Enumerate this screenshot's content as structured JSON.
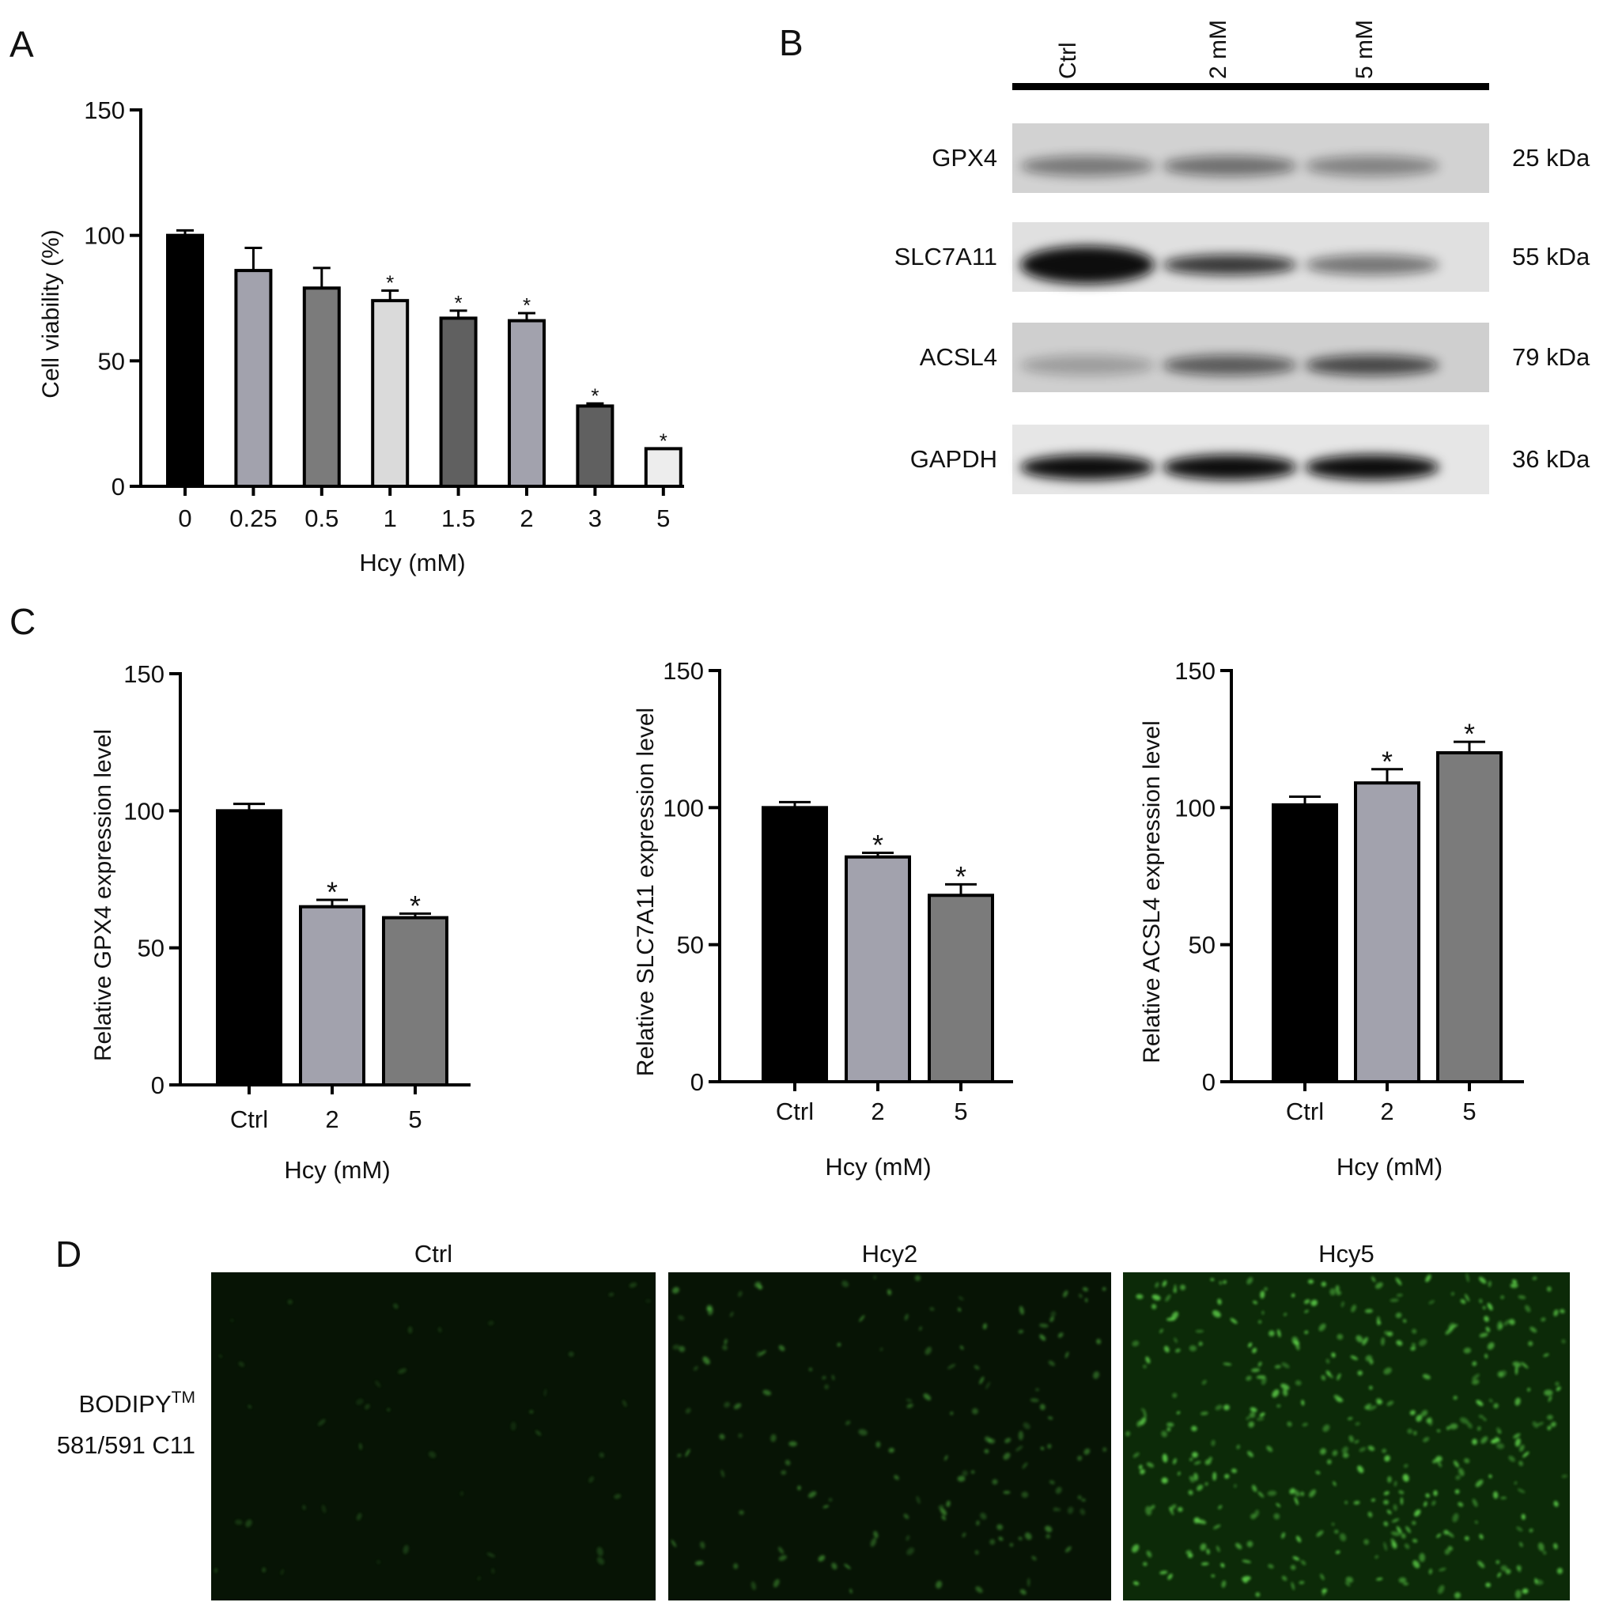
{
  "panel_labels": [
    "A",
    "B",
    "C",
    "D"
  ],
  "chart_data": [
    {
      "type": "bar",
      "ylabel": "Cell viability (%)",
      "xlabel": "Hcy (mM)",
      "categories": [
        "0",
        "0.25",
        "0.5",
        "1",
        "1.5",
        "2",
        "3",
        "5"
      ],
      "values": [
        100,
        86,
        79,
        74,
        67,
        66,
        32,
        15
      ],
      "errors": [
        2,
        9,
        8,
        4,
        3,
        3,
        1,
        0
      ],
      "significance": [
        null,
        null,
        null,
        "*",
        "*",
        "*",
        "*",
        "*"
      ],
      "colors": [
        "#000000",
        "#a2a2ad",
        "#7b7b7b",
        "#dadada",
        "#606060",
        "#a2a2ad",
        "#606060",
        "#ededed"
      ],
      "ylim": [
        0,
        150
      ],
      "yticks": [
        0,
        50,
        100,
        150
      ]
    },
    {
      "type": "bar",
      "ylabel": "Relative GPX4 expression level",
      "xlabel": "Hcy (mM)",
      "categories": [
        "Ctrl",
        "2",
        "5"
      ],
      "values": [
        100,
        65,
        61
      ],
      "errors": [
        2.5,
        2.5,
        1.5
      ],
      "significance": [
        null,
        "*",
        "*"
      ],
      "colors": [
        "#000000",
        "#a2a2ad",
        "#7b7b7b"
      ],
      "ylim": [
        0,
        150
      ],
      "yticks": [
        0,
        50,
        100,
        150
      ]
    },
    {
      "type": "bar",
      "ylabel": "Relative SLC7A11 expression level",
      "xlabel": "Hcy (mM)",
      "categories": [
        "Ctrl",
        "2",
        "5"
      ],
      "values": [
        100,
        82,
        68
      ],
      "errors": [
        2,
        1.5,
        4
      ],
      "significance": [
        null,
        "*",
        "*"
      ],
      "colors": [
        "#000000",
        "#a2a2ad",
        "#7b7b7b"
      ],
      "ylim": [
        0,
        150
      ],
      "yticks": [
        0,
        50,
        100,
        150
      ]
    },
    {
      "type": "bar",
      "ylabel": "Relative ACSL4 expression level",
      "xlabel": "Hcy (mM)",
      "categories": [
        "Ctrl",
        "2",
        "5"
      ],
      "values": [
        101,
        109,
        120
      ],
      "errors": [
        3,
        5,
        4
      ],
      "significance": [
        null,
        "*",
        "*"
      ],
      "colors": [
        "#000000",
        "#a2a2ad",
        "#7b7b7b"
      ],
      "ylim": [
        0,
        150
      ],
      "yticks": [
        0,
        50,
        100,
        150
      ]
    }
  ],
  "western_blot": {
    "lanes": [
      "Ctrl",
      "2 mM",
      "5 mM"
    ],
    "rows": [
      {
        "protein": "GPX4",
        "size": "25 kDa"
      },
      {
        "protein": "SLC7A11",
        "size": "55 kDa"
      },
      {
        "protein": "ACSL4",
        "size": "79 kDa"
      },
      {
        "protein": "GAPDH",
        "size": "36 kDa"
      }
    ]
  },
  "fluorescence": {
    "columns": [
      "Ctrl",
      "Hcy2",
      "Hcy5"
    ],
    "row_label": "BODIPY",
    "row_label_sup": "TM",
    "row_label_2": "581/591 C11"
  }
}
